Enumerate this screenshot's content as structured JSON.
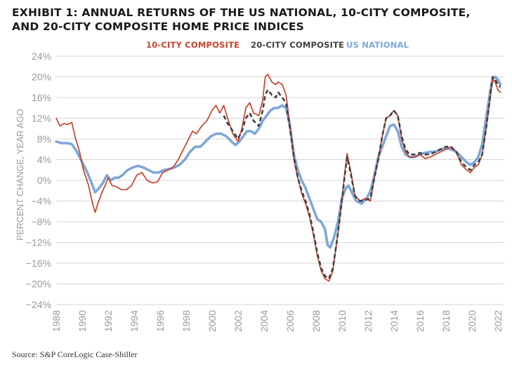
{
  "title_lines": [
    "EXHIBIT 1: ANNUAL RETURNS OF THE US NATIONAL, 10-CITY COMPOSITE,",
    "AND 20-CITY COMPOSITE HOME PRICE INDICES"
  ],
  "source": "Source: S&P CoreLogic Case-Shiller",
  "colors": {
    "ten_city": "#c8432b",
    "twenty_city": "#404040",
    "national": "#7fa7d8",
    "grid": "#d4d4d4",
    "tick_text": "#9a9a9a"
  },
  "chart_data": {
    "type": "line",
    "title": "EXHIBIT 1: ANNUAL RETURNS OF THE US NATIONAL, 10-CITY COMPOSITE, AND 20-CITY COMPOSITE HOME PRICE INDICES",
    "xlabel": "",
    "ylabel": "PERCENT CHANGE, YEAR AGO",
    "xlim": [
      1988,
      2022.5
    ],
    "ylim": [
      -24,
      24
    ],
    "yticks": [
      "24%",
      "20%",
      "16%",
      "12%",
      "8%",
      "4%",
      "0%",
      "-4%",
      "-8%",
      "-12%",
      "-16%",
      "-20%",
      "-24%"
    ],
    "xticks": [
      "1988",
      "1990",
      "1992",
      "1994",
      "1996",
      "1998",
      "2000",
      "2002",
      "2004",
      "2006",
      "2008",
      "2010",
      "2012",
      "2014",
      "2016",
      "2018",
      "2020",
      "2022"
    ],
    "grid": true,
    "legend_position": "top-center",
    "series": [
      {
        "name": "10-CITY COMPOSITE",
        "style": "solid",
        "color": "#c8432b",
        "points": [
          [
            1988.0,
            12.0
          ],
          [
            1988.3,
            10.5
          ],
          [
            1988.6,
            11.0
          ],
          [
            1988.9,
            10.8
          ],
          [
            1989.2,
            11.2
          ],
          [
            1989.5,
            8.0
          ],
          [
            1989.8,
            5.5
          ],
          [
            1990.1,
            2.0
          ],
          [
            1990.5,
            -1.0
          ],
          [
            1990.8,
            -4.5
          ],
          [
            1991.0,
            -6.2
          ],
          [
            1991.2,
            -4.5
          ],
          [
            1991.5,
            -2.5
          ],
          [
            1991.8,
            -0.8
          ],
          [
            1992.0,
            0.5
          ],
          [
            1992.3,
            -1.0
          ],
          [
            1992.6,
            -1.2
          ],
          [
            1993.0,
            -1.8
          ],
          [
            1993.4,
            -1.8
          ],
          [
            1993.8,
            -1.0
          ],
          [
            1994.2,
            1.0
          ],
          [
            1994.6,
            1.5
          ],
          [
            1995.0,
            0.0
          ],
          [
            1995.4,
            -0.5
          ],
          [
            1995.8,
            -0.3
          ],
          [
            1996.2,
            1.5
          ],
          [
            1996.6,
            2.0
          ],
          [
            1997.0,
            2.5
          ],
          [
            1997.4,
            4.0
          ],
          [
            1997.8,
            6.0
          ],
          [
            1998.2,
            8.0
          ],
          [
            1998.5,
            9.5
          ],
          [
            1998.8,
            9.0
          ],
          [
            1999.2,
            10.5
          ],
          [
            1999.6,
            11.5
          ],
          [
            2000.0,
            13.5
          ],
          [
            2000.3,
            14.5
          ],
          [
            2000.6,
            13.0
          ],
          [
            2000.9,
            14.5
          ],
          [
            2001.2,
            12.0
          ],
          [
            2001.6,
            9.0
          ],
          [
            2002.0,
            7.5
          ],
          [
            2002.3,
            10.0
          ],
          [
            2002.6,
            14.0
          ],
          [
            2002.9,
            15.0
          ],
          [
            2003.2,
            13.0
          ],
          [
            2003.6,
            12.5
          ],
          [
            2003.9,
            15.5
          ],
          [
            2004.1,
            20.0
          ],
          [
            2004.3,
            20.5
          ],
          [
            2004.6,
            19.0
          ],
          [
            2004.9,
            18.5
          ],
          [
            2005.1,
            19.0
          ],
          [
            2005.4,
            18.5
          ],
          [
            2005.7,
            16.5
          ],
          [
            2006.0,
            10.5
          ],
          [
            2006.3,
            4.0
          ],
          [
            2006.6,
            0.5
          ],
          [
            2006.9,
            -2.5
          ],
          [
            2007.2,
            -4.5
          ],
          [
            2007.5,
            -7.0
          ],
          [
            2007.8,
            -10.5
          ],
          [
            2008.1,
            -14.5
          ],
          [
            2008.4,
            -17.5
          ],
          [
            2008.7,
            -19.0
          ],
          [
            2009.0,
            -19.5
          ],
          [
            2009.3,
            -17.5
          ],
          [
            2009.6,
            -12.0
          ],
          [
            2009.9,
            -6.0
          ],
          [
            2010.2,
            1.0
          ],
          [
            2010.4,
            5.2
          ],
          [
            2010.7,
            1.5
          ],
          [
            2011.0,
            -3.0
          ],
          [
            2011.4,
            -4.0
          ],
          [
            2011.8,
            -3.5
          ],
          [
            2012.2,
            -4.0
          ],
          [
            2012.5,
            0.5
          ],
          [
            2012.8,
            4.0
          ],
          [
            2013.1,
            8.5
          ],
          [
            2013.4,
            12.0
          ],
          [
            2013.7,
            12.5
          ],
          [
            2014.0,
            13.5
          ],
          [
            2014.3,
            12.5
          ],
          [
            2014.6,
            8.0
          ],
          [
            2014.9,
            5.5
          ],
          [
            2015.2,
            4.5
          ],
          [
            2015.6,
            4.5
          ],
          [
            2016.0,
            5.0
          ],
          [
            2016.4,
            4.2
          ],
          [
            2016.8,
            4.5
          ],
          [
            2017.2,
            5.0
          ],
          [
            2017.6,
            5.5
          ],
          [
            2018.0,
            6.0
          ],
          [
            2018.4,
            6.5
          ],
          [
            2018.8,
            5.5
          ],
          [
            2019.2,
            3.0
          ],
          [
            2019.6,
            2.0
          ],
          [
            2019.9,
            1.5
          ],
          [
            2020.2,
            2.5
          ],
          [
            2020.5,
            3.0
          ],
          [
            2020.8,
            5.0
          ],
          [
            2021.1,
            10.0
          ],
          [
            2021.4,
            15.5
          ],
          [
            2021.6,
            19.5
          ],
          [
            2021.8,
            19.0
          ],
          [
            2022.0,
            17.5
          ],
          [
            2022.2,
            17.0
          ]
        ]
      },
      {
        "name": "20-CITY COMPOSITE",
        "style": "dashed",
        "color": "#404040",
        "points": [
          [
            2000.9,
            12.5
          ],
          [
            2001.2,
            11.0
          ],
          [
            2001.6,
            9.5
          ],
          [
            2002.0,
            8.0
          ],
          [
            2002.3,
            9.5
          ],
          [
            2002.6,
            12.0
          ],
          [
            2002.9,
            13.0
          ],
          [
            2003.2,
            11.5
          ],
          [
            2003.6,
            10.5
          ],
          [
            2003.9,
            13.5
          ],
          [
            2004.1,
            16.5
          ],
          [
            2004.3,
            17.5
          ],
          [
            2004.6,
            16.5
          ],
          [
            2004.9,
            16.0
          ],
          [
            2005.1,
            17.0
          ],
          [
            2005.4,
            16.0
          ],
          [
            2005.7,
            15.0
          ],
          [
            2006.0,
            10.0
          ],
          [
            2006.3,
            4.5
          ],
          [
            2006.6,
            0.5
          ],
          [
            2006.9,
            -2.0
          ],
          [
            2007.2,
            -4.0
          ],
          [
            2007.5,
            -6.5
          ],
          [
            2007.8,
            -10.0
          ],
          [
            2008.1,
            -14.0
          ],
          [
            2008.4,
            -17.0
          ],
          [
            2008.7,
            -18.5
          ],
          [
            2009.0,
            -19.0
          ],
          [
            2009.3,
            -17.0
          ],
          [
            2009.6,
            -12.0
          ],
          [
            2009.9,
            -6.0
          ],
          [
            2010.2,
            0.5
          ],
          [
            2010.4,
            4.5
          ],
          [
            2010.7,
            1.0
          ],
          [
            2011.0,
            -3.0
          ],
          [
            2011.4,
            -4.0
          ],
          [
            2011.8,
            -3.8
          ],
          [
            2012.2,
            -3.5
          ],
          [
            2012.5,
            0.5
          ],
          [
            2012.8,
            4.0
          ],
          [
            2013.1,
            8.5
          ],
          [
            2013.4,
            12.0
          ],
          [
            2013.7,
            12.5
          ],
          [
            2014.0,
            13.5
          ],
          [
            2014.3,
            12.5
          ],
          [
            2014.6,
            8.5
          ],
          [
            2014.9,
            6.0
          ],
          [
            2015.2,
            5.0
          ],
          [
            2015.6,
            5.0
          ],
          [
            2016.0,
            5.3
          ],
          [
            2016.4,
            5.0
          ],
          [
            2016.8,
            5.0
          ],
          [
            2017.2,
            5.5
          ],
          [
            2017.6,
            6.0
          ],
          [
            2018.0,
            6.5
          ],
          [
            2018.4,
            6.5
          ],
          [
            2018.8,
            5.5
          ],
          [
            2019.2,
            3.5
          ],
          [
            2019.6,
            2.5
          ],
          [
            2019.9,
            2.0
          ],
          [
            2020.2,
            3.0
          ],
          [
            2020.5,
            3.5
          ],
          [
            2020.8,
            5.0
          ],
          [
            2021.1,
            10.0
          ],
          [
            2021.4,
            16.0
          ],
          [
            2021.6,
            20.0
          ],
          [
            2021.8,
            19.5
          ],
          [
            2022.0,
            18.5
          ],
          [
            2022.2,
            18.0
          ]
        ]
      },
      {
        "name": "US NATIONAL",
        "style": "solid-thick",
        "color": "#7fa7d8",
        "points": [
          [
            1988.0,
            7.5
          ],
          [
            1988.4,
            7.2
          ],
          [
            1988.8,
            7.2
          ],
          [
            1989.2,
            7.0
          ],
          [
            1989.6,
            5.5
          ],
          [
            1990.0,
            3.5
          ],
          [
            1990.4,
            1.5
          ],
          [
            1990.8,
            -1.0
          ],
          [
            1991.0,
            -2.3
          ],
          [
            1991.3,
            -1.5
          ],
          [
            1991.6,
            -0.5
          ],
          [
            1991.9,
            1.0
          ],
          [
            1992.2,
            0.0
          ],
          [
            1992.5,
            0.5
          ],
          [
            1992.8,
            0.5
          ],
          [
            1993.1,
            1.0
          ],
          [
            1993.5,
            2.0
          ],
          [
            1993.9,
            2.5
          ],
          [
            1994.3,
            2.8
          ],
          [
            1994.7,
            2.5
          ],
          [
            1995.1,
            2.0
          ],
          [
            1995.5,
            1.5
          ],
          [
            1995.9,
            1.5
          ],
          [
            1996.3,
            2.0
          ],
          [
            1996.7,
            2.2
          ],
          [
            1997.1,
            2.5
          ],
          [
            1997.5,
            3.0
          ],
          [
            1997.9,
            4.0
          ],
          [
            1998.3,
            5.5
          ],
          [
            1998.7,
            6.5
          ],
          [
            1999.1,
            6.5
          ],
          [
            1999.5,
            7.5
          ],
          [
            1999.9,
            8.5
          ],
          [
            2000.3,
            9.0
          ],
          [
            2000.7,
            9.0
          ],
          [
            2001.1,
            8.5
          ],
          [
            2001.5,
            7.5
          ],
          [
            2001.8,
            6.8
          ],
          [
            2002.1,
            7.5
          ],
          [
            2002.4,
            8.5
          ],
          [
            2002.7,
            9.5
          ],
          [
            2003.0,
            9.5
          ],
          [
            2003.3,
            9.0
          ],
          [
            2003.6,
            10.0
          ],
          [
            2003.9,
            11.5
          ],
          [
            2004.2,
            12.5
          ],
          [
            2004.5,
            13.5
          ],
          [
            2004.8,
            14.0
          ],
          [
            2005.1,
            14.0
          ],
          [
            2005.4,
            14.5
          ],
          [
            2005.7,
            14.0
          ],
          [
            2006.0,
            10.5
          ],
          [
            2006.3,
            5.0
          ],
          [
            2006.6,
            2.0
          ],
          [
            2006.9,
            0.0
          ],
          [
            2007.2,
            -1.5
          ],
          [
            2007.5,
            -3.5
          ],
          [
            2007.8,
            -5.5
          ],
          [
            2008.1,
            -7.5
          ],
          [
            2008.4,
            -8.0
          ],
          [
            2008.7,
            -9.5
          ],
          [
            2008.9,
            -12.5
          ],
          [
            2009.1,
            -13.0
          ],
          [
            2009.4,
            -11.0
          ],
          [
            2009.7,
            -8.0
          ],
          [
            2010.0,
            -3.5
          ],
          [
            2010.3,
            -1.5
          ],
          [
            2010.5,
            -1.0
          ],
          [
            2010.8,
            -2.5
          ],
          [
            2011.1,
            -4.0
          ],
          [
            2011.5,
            -4.5
          ],
          [
            2011.9,
            -3.5
          ],
          [
            2012.2,
            -2.0
          ],
          [
            2012.5,
            1.0
          ],
          [
            2012.8,
            4.5
          ],
          [
            2013.1,
            6.5
          ],
          [
            2013.4,
            8.5
          ],
          [
            2013.7,
            10.5
          ],
          [
            2014.0,
            10.8
          ],
          [
            2014.3,
            9.5
          ],
          [
            2014.6,
            6.5
          ],
          [
            2014.9,
            5.0
          ],
          [
            2015.2,
            4.5
          ],
          [
            2015.6,
            4.5
          ],
          [
            2016.0,
            5.0
          ],
          [
            2016.4,
            5.3
          ],
          [
            2016.8,
            5.5
          ],
          [
            2017.2,
            5.5
          ],
          [
            2017.6,
            6.0
          ],
          [
            2018.0,
            6.2
          ],
          [
            2018.4,
            6.0
          ],
          [
            2018.8,
            5.5
          ],
          [
            2019.2,
            4.5
          ],
          [
            2019.6,
            3.5
          ],
          [
            2019.9,
            3.0
          ],
          [
            2020.2,
            3.5
          ],
          [
            2020.5,
            4.5
          ],
          [
            2020.8,
            7.0
          ],
          [
            2021.1,
            12.0
          ],
          [
            2021.4,
            17.0
          ],
          [
            2021.6,
            19.5
          ],
          [
            2021.8,
            20.0
          ],
          [
            2022.0,
            19.5
          ],
          [
            2022.2,
            18.5
          ]
        ]
      }
    ]
  }
}
